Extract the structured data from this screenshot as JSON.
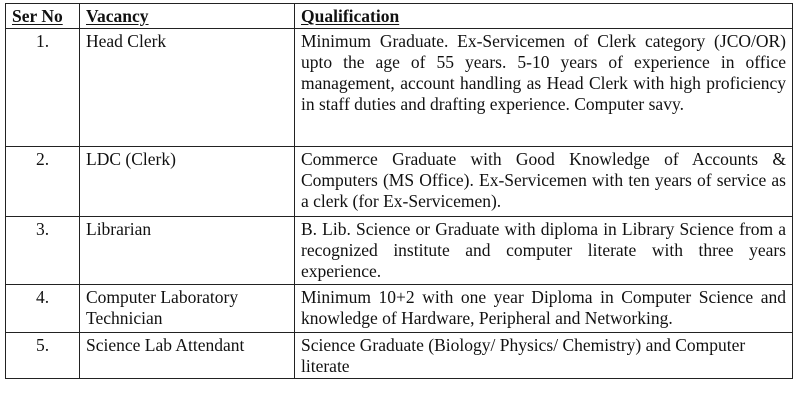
{
  "table": {
    "headers": {
      "ser_no": "Ser No",
      "vacancy": "Vacancy",
      "qualification": "Qualification"
    },
    "rows": [
      {
        "ser_no": "1.",
        "vacancy": "Head Clerk",
        "qualification": "Minimum Graduate. Ex-Servicemen of Clerk category (JCO/OR) upto the age of 55 years. 5-10 years of experience in office management, account handling as Head Clerk with high proficiency in staff duties and drafting experience.  Computer savy."
      },
      {
        "ser_no": "2.",
        "vacancy": "LDC (Clerk)",
        "qualification": "Commerce Graduate with Good Knowledge of Accounts & Computers (MS Office).  Ex-Servicemen with ten years of service as a clerk (for Ex-Servicemen)."
      },
      {
        "ser_no": "3.",
        "vacancy": "Librarian",
        "qualification": "B. Lib. Science or Graduate with diploma in Library Science from a recognized institute and computer literate with three years experience."
      },
      {
        "ser_no": "4.",
        "vacancy": "Computer Laboratory Technician",
        "qualification": "Minimum 10+2 with one year Diploma in Computer Science and knowledge of Hardware, Peripheral and Networking."
      },
      {
        "ser_no": "5.",
        "vacancy": "Science Lab Attendant",
        "qualification": "Science Graduate (Biology/ Physics/ Chemistry) and Computer literate"
      }
    ]
  }
}
